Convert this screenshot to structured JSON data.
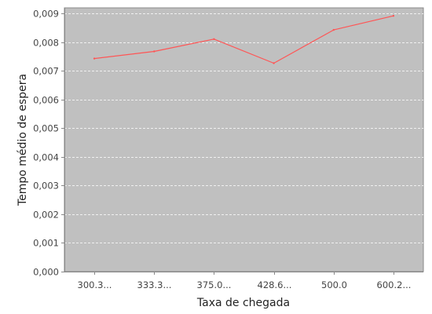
{
  "chart_data": {
    "type": "line",
    "title": "",
    "xlabel": "Taxa de chegada",
    "ylabel": "Tempo médio de espera",
    "categories": [
      "300.3...",
      "333.3...",
      "375.0...",
      "428.6...",
      "500.0",
      "600.2..."
    ],
    "series": [
      {
        "values": [
          0.00743,
          0.00768,
          0.00811,
          0.00727,
          0.00843,
          0.00892
        ]
      }
    ],
    "ylim": [
      0,
      0.0092
    ],
    "yticks": [
      "0,000",
      "0,001",
      "0,002",
      "0,003",
      "0,004",
      "0,005",
      "0,006",
      "0,007",
      "0,008",
      "0,009"
    ],
    "ytick_values": [
      0,
      0.001,
      0.002,
      0.003,
      0.004,
      0.005,
      0.006,
      0.007,
      0.008,
      0.009
    ],
    "grid": true,
    "legend": "none",
    "colors": {
      "plot_background": "#c0c0c0",
      "gridline": "#ffffff",
      "series": "#ff5555",
      "axis": "#888888"
    }
  }
}
